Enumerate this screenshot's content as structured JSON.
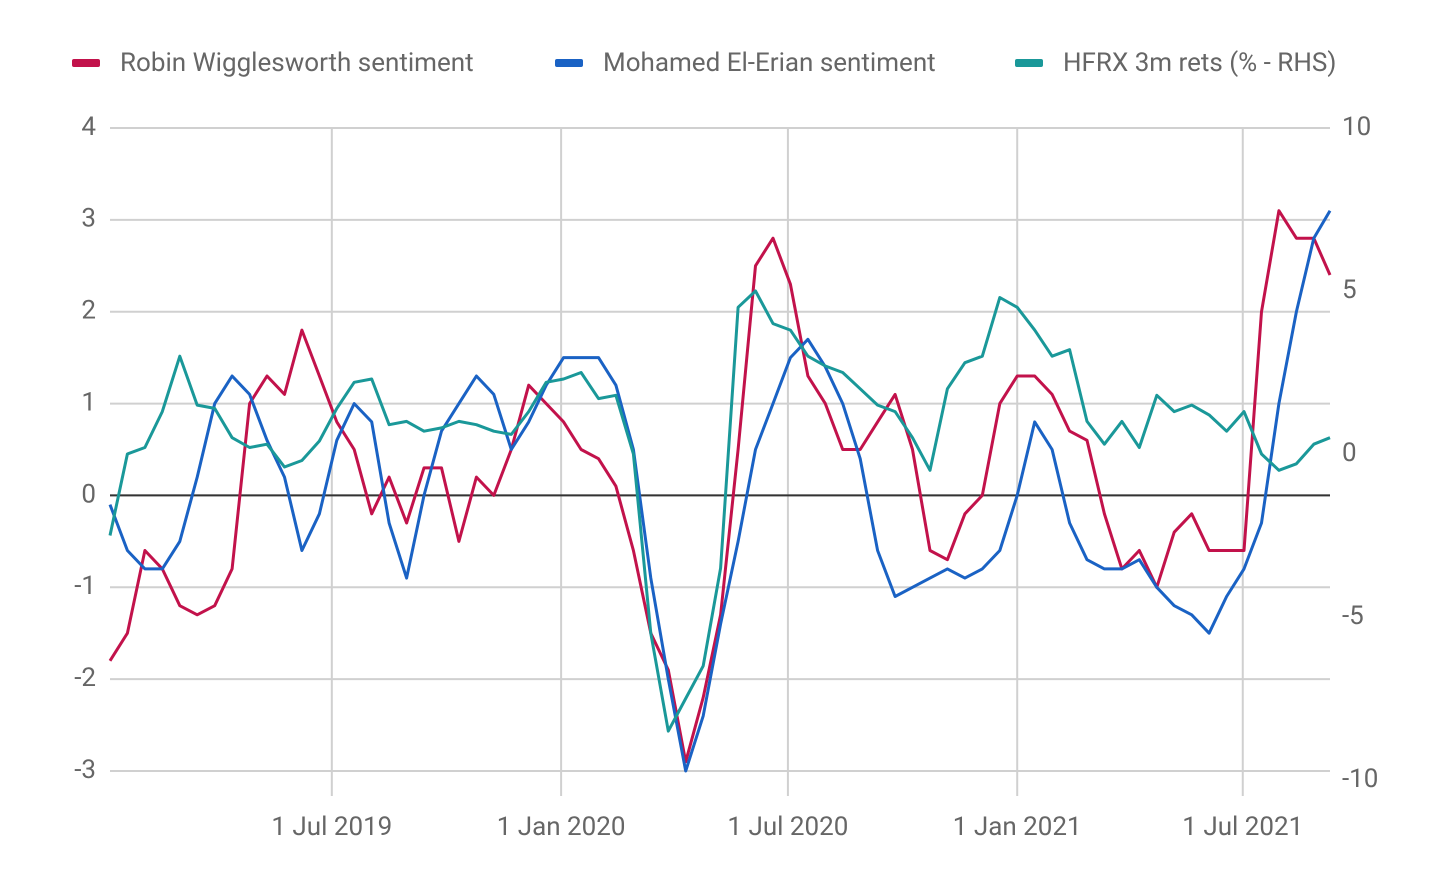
{
  "chart_data": {
    "type": "line",
    "x": [
      "2019-01-04",
      "2019-01-18",
      "2019-02-01",
      "2019-02-15",
      "2019-03-01",
      "2019-03-15",
      "2019-03-29",
      "2019-04-12",
      "2019-04-26",
      "2019-05-10",
      "2019-05-24",
      "2019-06-07",
      "2019-06-21",
      "2019-07-05",
      "2019-07-19",
      "2019-08-02",
      "2019-08-16",
      "2019-08-30",
      "2019-09-13",
      "2019-09-27",
      "2019-10-11",
      "2019-10-25",
      "2019-11-08",
      "2019-11-22",
      "2019-12-06",
      "2019-12-20",
      "2020-01-03",
      "2020-01-17",
      "2020-01-31",
      "2020-02-14",
      "2020-02-28",
      "2020-03-13",
      "2020-03-27",
      "2020-04-10",
      "2020-04-24",
      "2020-05-08",
      "2020-05-22",
      "2020-06-05",
      "2020-06-19",
      "2020-07-03",
      "2020-07-17",
      "2020-07-31",
      "2020-08-14",
      "2020-08-28",
      "2020-09-11",
      "2020-09-25",
      "2020-10-09",
      "2020-10-23",
      "2020-11-06",
      "2020-11-20",
      "2020-12-04",
      "2020-12-18",
      "2021-01-01",
      "2021-01-15",
      "2021-01-29",
      "2021-02-12",
      "2021-02-26",
      "2021-03-12",
      "2021-03-26",
      "2021-04-09",
      "2021-04-23",
      "2021-05-07",
      "2021-05-21",
      "2021-06-04",
      "2021-06-18",
      "2021-07-02",
      "2021-07-16",
      "2021-07-30",
      "2021-08-13",
      "2021-08-27",
      "2021-09-09"
    ],
    "series": [
      {
        "name": "Robin Wigglesworth sentiment",
        "color": "#c2124b",
        "axis": "y",
        "values": [
          -1.8,
          -1.5,
          -0.6,
          -0.8,
          -1.2,
          -1.3,
          -1.2,
          -0.8,
          1.0,
          1.3,
          1.1,
          1.8,
          1.3,
          0.8,
          0.5,
          -0.2,
          0.2,
          -0.3,
          0.3,
          0.3,
          -0.5,
          0.2,
          0.0,
          0.5,
          1.2,
          1.0,
          0.8,
          0.5,
          0.4,
          0.1,
          -0.6,
          -1.5,
          -1.9,
          -2.9,
          -2.2,
          -1.3,
          0.5,
          2.5,
          2.8,
          2.3,
          1.3,
          1.0,
          0.5,
          0.5,
          0.8,
          1.1,
          0.5,
          -0.6,
          -0.7,
          -0.2,
          0.0,
          1.0,
          1.3,
          1.3,
          1.1,
          0.7,
          0.6,
          -0.2,
          -0.8,
          -0.6,
          -1.0,
          -0.4,
          -0.2,
          -0.6,
          -0.6,
          -0.6,
          2.0,
          3.1,
          2.8,
          2.8,
          2.4
        ]
      },
      {
        "name": "Mohamed El-Erian sentiment",
        "color": "#1a62c4",
        "axis": "y",
        "values": [
          -0.1,
          -0.6,
          -0.8,
          -0.8,
          -0.5,
          0.2,
          1.0,
          1.3,
          1.1,
          0.6,
          0.2,
          -0.6,
          -0.2,
          0.6,
          1.0,
          0.8,
          -0.3,
          -0.9,
          0.0,
          0.7,
          1.0,
          1.3,
          1.1,
          0.5,
          0.8,
          1.2,
          1.5,
          1.5,
          1.5,
          1.2,
          0.5,
          -0.9,
          -2.0,
          -3.0,
          -2.4,
          -1.4,
          -0.5,
          0.5,
          1.0,
          1.5,
          1.7,
          1.4,
          1.0,
          0.4,
          -0.6,
          -1.1,
          -1.0,
          -0.9,
          -0.8,
          -0.9,
          -0.8,
          -0.6,
          0.0,
          0.8,
          0.5,
          -0.3,
          -0.7,
          -0.8,
          -0.8,
          -0.7,
          -1.0,
          -1.2,
          -1.3,
          -1.5,
          -1.1,
          -0.8,
          -0.3,
          1.0,
          2.0,
          2.8,
          3.1
        ]
      },
      {
        "name": "HFRX 3m rets (% - RHS)",
        "color": "#1a9899",
        "axis": "y2",
        "values": [
          -2.5,
          0.0,
          0.2,
          1.3,
          3.0,
          1.5,
          1.4,
          0.5,
          0.2,
          0.3,
          -0.4,
          -0.2,
          0.4,
          1.4,
          2.2,
          2.3,
          0.9,
          1.0,
          0.7,
          0.8,
          1.0,
          0.9,
          0.7,
          0.6,
          1.3,
          2.2,
          2.3,
          2.5,
          1.7,
          1.8,
          0.0,
          -5.5,
          -8.5,
          -7.5,
          -6.5,
          -3.5,
          4.5,
          5.0,
          4.0,
          3.8,
          3.0,
          2.7,
          2.5,
          2.0,
          1.5,
          1.3,
          0.5,
          -0.5,
          2.0,
          2.8,
          3.0,
          4.8,
          4.5,
          3.8,
          3.0,
          3.2,
          1.0,
          0.3,
          1.0,
          0.2,
          1.8,
          1.3,
          1.5,
          1.2,
          0.7,
          1.3,
          0.0,
          -0.5,
          -0.3,
          0.3,
          0.5
        ]
      }
    ],
    "xlim": [
      "2019-01-04",
      "2021-09-09"
    ],
    "xticks": [
      {
        "value": "2019-07-01",
        "label": "1 Jul 2019"
      },
      {
        "value": "2020-01-01",
        "label": "1 Jan 2020"
      },
      {
        "value": "2020-07-01",
        "label": "1 Jul 2020"
      },
      {
        "value": "2021-01-01",
        "label": "1 Jan 2021"
      },
      {
        "value": "2021-07-01",
        "label": "1 Jul 2021"
      }
    ],
    "ylim": [
      -3,
      4
    ],
    "yticks": [
      -3,
      -2,
      -1,
      0,
      1,
      2,
      3,
      4
    ],
    "y2lim": [
      -10,
      10
    ],
    "y2ticks": [
      -10,
      -5,
      0,
      5,
      10
    ],
    "grid": true,
    "legend": "top"
  }
}
